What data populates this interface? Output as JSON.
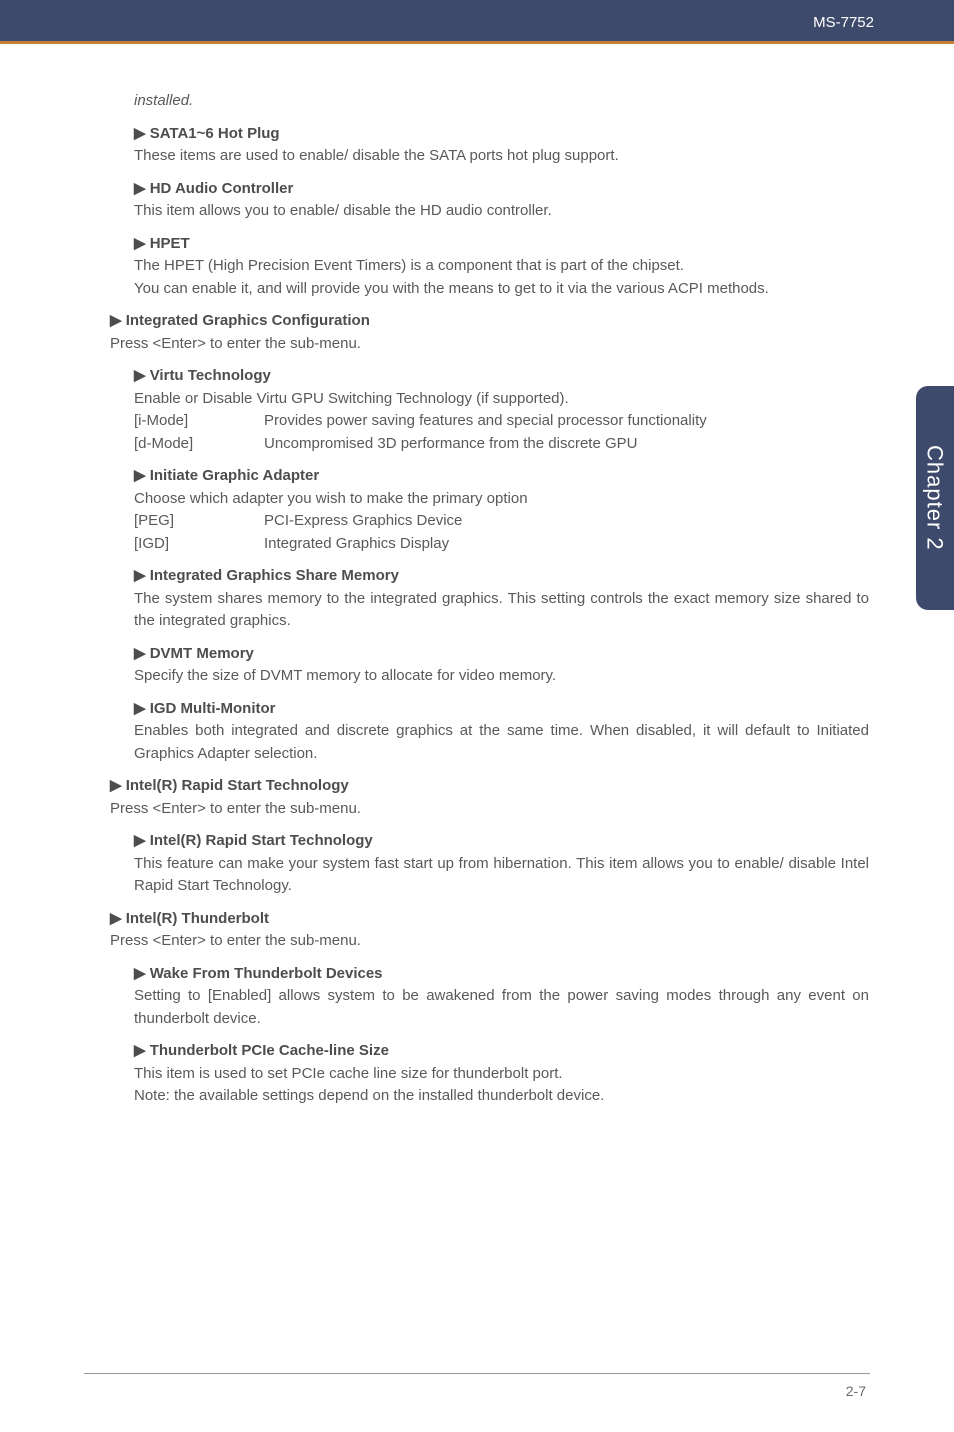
{
  "header": {
    "model": "MS-7752"
  },
  "sidetab": "Chapter 2",
  "footer": {
    "page": "2-7"
  },
  "colors": {
    "header_bg": "#3e4a6b",
    "header_line": "#c77f3a",
    "body_text": "#595959",
    "bold_text": "#4d4d4d",
    "tab_bg": "#3e4a6b",
    "background": "#ffffff",
    "footer_line": "#9a9a9a"
  },
  "txt": {
    "installed": "installed.",
    "sata_h": "▶ SATA1~6 Hot Plug",
    "sata_p": "These items are used to enable/ disable the SATA ports hot plug support.",
    "hdaudio_h": "▶ HD Audio Controller",
    "hdaudio_p": "This item allows you to enable/ disable the HD audio controller.",
    "hpet_h": "▶ HPET",
    "hpet_p1": "The HPET (High Precision Event Timers) is a component that is part of the chipset.",
    "hpet_p2": "You can enable it, and will provide you with the means to get to it via the various ACPI methods.",
    "igc_h": "▶ Integrated Graphics Configuration",
    "igc_p": "Press <Enter> to enter the sub-menu.",
    "virtu_h": "▶ Virtu Technology",
    "virtu_p": "Enable or Disable Virtu GPU Switching Technology (if supported).",
    "imode_k": "[i-Mode]",
    "imode_v": "Provides power saving features and special processor functionality",
    "dmode_k": "[d-Mode]",
    "dmode_v": "Uncompromised 3D performance from the discrete GPU",
    "iga_h": "▶ Initiate Graphic Adapter",
    "iga_p": "Choose which adapter you wish to make the primary option",
    "peg_k": "[PEG]",
    "peg_v": "PCI-Express Graphics Device",
    "igd_k": "[IGD]",
    "igd_v": "Integrated Graphics Display",
    "igsm_h": "▶ Integrated Graphics Share Memory",
    "igsm_p": "The system shares memory to the integrated graphics. This setting controls the exact memory size shared to the integrated graphics.",
    "dvmt_h": "▶ DVMT Memory",
    "dvmt_p": "Specify the size of DVMT memory to allocate for video memory.",
    "igdm_h": "▶ IGD Multi-Monitor",
    "igdm_p": "Enables both integrated and discrete graphics at the same time. When disabled, it will default to Initiated Graphics Adapter selection.",
    "rst_h": "▶ Intel(R) Rapid Start Technology",
    "rst_p": "Press <Enter> to enter the sub-menu.",
    "rst2_h": "▶ Intel(R) Rapid Start Technology",
    "rst2_p": "This feature can make your system fast start up from hibernation. This item allows you to enable/ disable Intel Rapid Start Technology.",
    "tb_h": "▶ Intel(R) Thunderbolt",
    "tb_p": "Press <Enter> to enter the sub-menu.",
    "wtb_h": "▶ Wake From Thunderbolt Devices",
    "wtb_p": "Setting to [Enabled] allows system to be awakened from the power saving modes through any event on thunderbolt device.",
    "tpcie_h": "▶ Thunderbolt PCIe Cache-line Size",
    "tpcie_p1": "This item is used to set PCIe cache line size for thunderbolt port.",
    "tpcie_p2": "Note: the available settings depend on the installed thunderbolt device."
  }
}
